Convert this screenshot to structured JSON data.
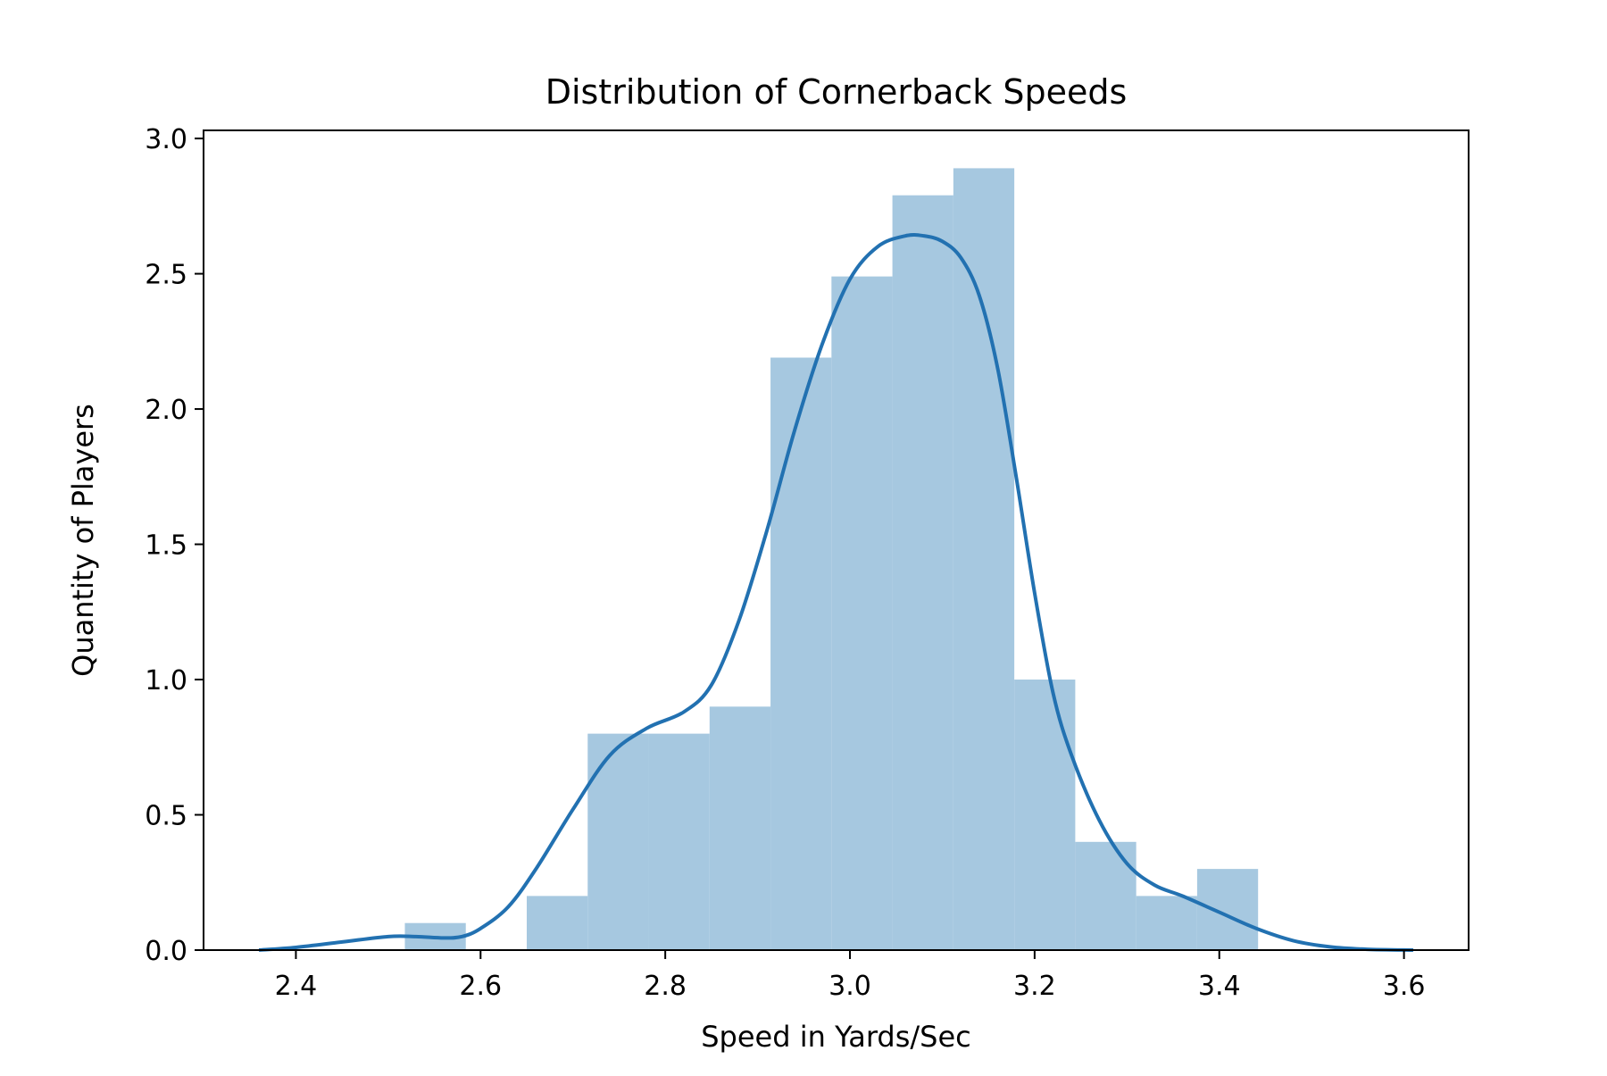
{
  "chart_data": {
    "type": "histogram",
    "title": "Distribution of Cornerback Speeds",
    "xlabel": "Speed in Yards/Sec",
    "ylabel": "Quantity of Players",
    "xlim": [
      2.3,
      3.67
    ],
    "ylim": [
      0,
      3.03
    ],
    "xticks": [
      "2.4",
      "2.6",
      "2.8",
      "3.0",
      "3.2",
      "3.4",
      "3.6"
    ],
    "yticks": [
      "0.0",
      "0.5",
      "1.0",
      "1.5",
      "2.0",
      "2.5",
      "3.0"
    ],
    "grid": false,
    "bar_color": "#a6c8e0",
    "line_color": "#2271b1",
    "bins": [
      {
        "x0": 2.518,
        "x1": 2.584,
        "value": 0.1
      },
      {
        "x0": 2.584,
        "x1": 2.65,
        "value": 0.0
      },
      {
        "x0": 2.65,
        "x1": 2.716,
        "value": 0.2
      },
      {
        "x0": 2.716,
        "x1": 2.782,
        "value": 0.8
      },
      {
        "x0": 2.782,
        "x1": 2.848,
        "value": 0.8
      },
      {
        "x0": 2.848,
        "x1": 2.914,
        "value": 0.9
      },
      {
        "x0": 2.914,
        "x1": 2.98,
        "value": 2.19
      },
      {
        "x0": 2.98,
        "x1": 3.046,
        "value": 2.49
      },
      {
        "x0": 3.046,
        "x1": 3.112,
        "value": 2.79
      },
      {
        "x0": 3.112,
        "x1": 3.178,
        "value": 2.89
      },
      {
        "x0": 3.178,
        "x1": 3.244,
        "value": 1.0
      },
      {
        "x0": 3.244,
        "x1": 3.31,
        "value": 0.4
      },
      {
        "x0": 3.31,
        "x1": 3.376,
        "value": 0.2
      },
      {
        "x0": 3.376,
        "x1": 3.442,
        "value": 0.3
      }
    ],
    "kde": {
      "x": [
        2.36,
        2.4,
        2.45,
        2.5,
        2.53,
        2.56,
        2.58,
        2.6,
        2.63,
        2.66,
        2.7,
        2.74,
        2.78,
        2.82,
        2.85,
        2.88,
        2.91,
        2.94,
        2.97,
        3.0,
        3.03,
        3.06,
        3.08,
        3.1,
        3.12,
        3.14,
        3.16,
        3.18,
        3.2,
        3.22,
        3.24,
        3.27,
        3.3,
        3.33,
        3.36,
        3.4,
        3.44,
        3.48,
        3.52,
        3.56,
        3.61
      ],
      "y": [
        0.0,
        0.01,
        0.03,
        0.05,
        0.05,
        0.045,
        0.05,
        0.08,
        0.16,
        0.3,
        0.52,
        0.72,
        0.82,
        0.88,
        0.98,
        1.22,
        1.55,
        1.92,
        2.24,
        2.48,
        2.6,
        2.64,
        2.64,
        2.62,
        2.56,
        2.42,
        2.15,
        1.75,
        1.32,
        0.95,
        0.72,
        0.48,
        0.32,
        0.24,
        0.2,
        0.14,
        0.08,
        0.035,
        0.012,
        0.003,
        0.0
      ]
    }
  }
}
